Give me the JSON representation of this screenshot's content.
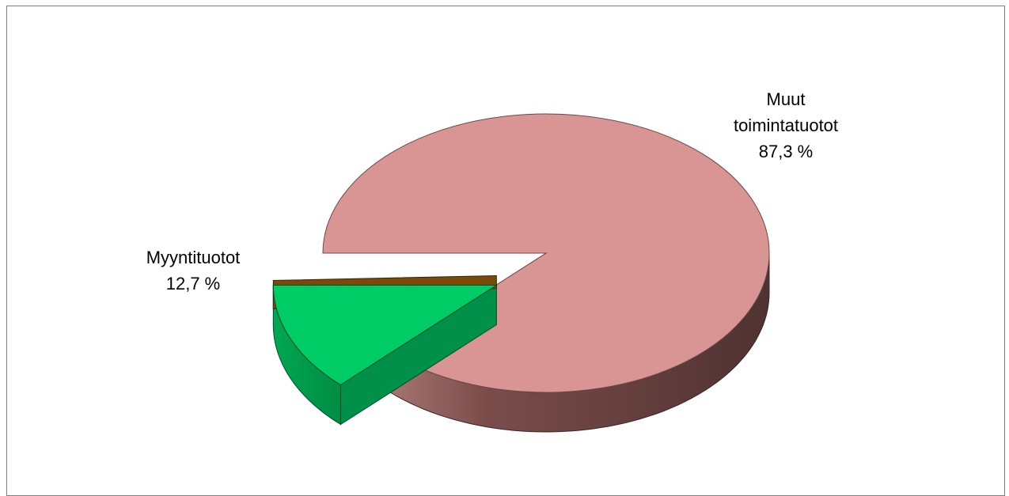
{
  "chart_data": {
    "type": "pie",
    "style": "3d-exploded",
    "slices": [
      {
        "label_lines": [
          "Muut",
          "toimintatuotot"
        ],
        "value_label": "87,3 %",
        "value": 87.3,
        "color_top": "#d99594",
        "color_side": "#6e4341",
        "exploded": false
      },
      {
        "label_lines": [
          "Myyntituotot"
        ],
        "value_label": "12,7 %",
        "value": 12.7,
        "color_top": "#00cc66",
        "color_side": "#00a050",
        "exploded": true
      }
    ],
    "legend": "none",
    "grid": false
  }
}
